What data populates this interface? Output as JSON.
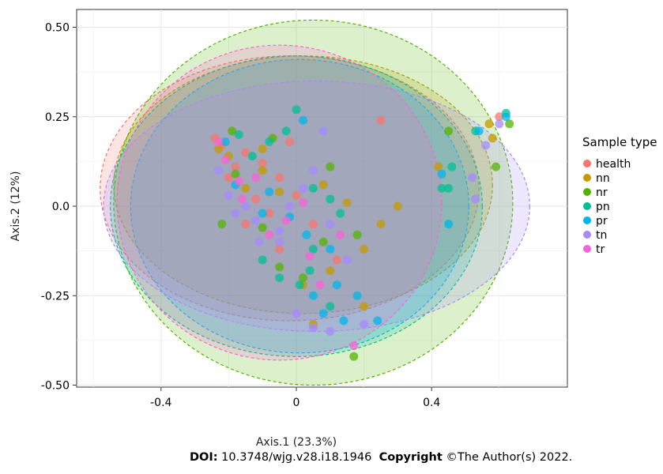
{
  "chart_data": {
    "type": "scatter",
    "xlabel": "Axis.1 (23.3%)",
    "ylabel": "Axis.2 (12%)",
    "xlim": [
      -0.65,
      0.8
    ],
    "ylim": [
      -0.52,
      0.56
    ],
    "x_ticks": [
      -0.4,
      0,
      0.4
    ],
    "x_tick_labels": [
      "-0.4",
      "0",
      "0.4"
    ],
    "y_ticks": [
      -0.5,
      -0.25,
      0.0,
      0.25,
      0.5
    ],
    "y_tick_labels": [
      "-0.50",
      "-0.25",
      "0.0",
      "0.25",
      "0.50"
    ],
    "grid": true,
    "legend": {
      "title": "Sample type",
      "placement": "right",
      "entries": [
        "health",
        "nn",
        "nr",
        "pn",
        "pr",
        "tn",
        "tr"
      ]
    },
    "colors": {
      "health": "#F8766D",
      "nn": "#C49A00",
      "nr": "#53B400",
      "pn": "#00C094",
      "pr": "#00B6EB",
      "tn": "#A58AFF",
      "tr": "#FB61D7"
    },
    "ellipses": [
      {
        "group": "health",
        "cx": -0.02,
        "cy": 0.05,
        "rx": 0.56,
        "ry": 0.37
      },
      {
        "group": "nn",
        "cx": 0.02,
        "cy": 0.06,
        "rx": 0.56,
        "ry": 0.36
      },
      {
        "group": "nr",
        "cx": 0.05,
        "cy": 0.01,
        "rx": 0.59,
        "ry": 0.51
      },
      {
        "group": "pn",
        "cx": 0.0,
        "cy": 0.0,
        "rx": 0.55,
        "ry": 0.42
      },
      {
        "group": "pr",
        "cx": 0.01,
        "cy": 0.0,
        "rx": 0.5,
        "ry": 0.41
      },
      {
        "group": "tn",
        "cx": 0.06,
        "cy": 0.0,
        "rx": 0.63,
        "ry": 0.35
      },
      {
        "group": "tr",
        "cx": -0.05,
        "cy": 0.01,
        "rx": 0.48,
        "ry": 0.44
      }
    ],
    "series": [
      {
        "name": "health",
        "points": [
          [
            -0.24,
            0.19
          ],
          [
            -0.22,
            0.17
          ],
          [
            -0.15,
            0.15
          ],
          [
            -0.1,
            0.12
          ],
          [
            -0.05,
            0.08
          ],
          [
            -0.2,
            0.08
          ],
          [
            -0.12,
            0.02
          ],
          [
            -0.08,
            -0.02
          ],
          [
            -0.15,
            -0.05
          ],
          [
            0.0,
            0.03
          ],
          [
            0.05,
            -0.05
          ],
          [
            -0.05,
            -0.12
          ],
          [
            0.12,
            -0.15
          ],
          [
            0.25,
            0.24
          ],
          [
            0.6,
            0.25
          ],
          [
            -0.18,
            0.11
          ],
          [
            -0.02,
            0.18
          ]
        ]
      },
      {
        "name": "nn",
        "points": [
          [
            -0.23,
            0.16
          ],
          [
            -0.2,
            0.14
          ],
          [
            -0.1,
            0.1
          ],
          [
            -0.15,
            0.05
          ],
          [
            -0.05,
            0.04
          ],
          [
            0.08,
            0.06
          ],
          [
            0.15,
            0.01
          ],
          [
            0.25,
            -0.05
          ],
          [
            0.3,
            0.0
          ],
          [
            0.2,
            -0.12
          ],
          [
            0.1,
            -0.18
          ],
          [
            0.02,
            -0.22
          ],
          [
            0.2,
            -0.28
          ],
          [
            0.05,
            -0.33
          ],
          [
            0.58,
            0.19
          ],
          [
            0.57,
            0.23
          ],
          [
            0.42,
            0.11
          ],
          [
            -0.1,
            0.16
          ]
        ]
      },
      {
        "name": "nr",
        "points": [
          [
            -0.19,
            0.21
          ],
          [
            -0.18,
            0.09
          ],
          [
            -0.22,
            -0.05
          ],
          [
            -0.1,
            -0.06
          ],
          [
            -0.05,
            -0.17
          ],
          [
            0.02,
            -0.2
          ],
          [
            0.08,
            -0.1
          ],
          [
            0.18,
            -0.08
          ],
          [
            0.45,
            0.21
          ],
          [
            0.63,
            0.23
          ],
          [
            0.59,
            0.11
          ],
          [
            0.17,
            -0.42
          ],
          [
            -0.07,
            0.19
          ],
          [
            0.1,
            0.11
          ]
        ]
      },
      {
        "name": "pn",
        "points": [
          [
            -0.17,
            0.2
          ],
          [
            -0.13,
            0.14
          ],
          [
            -0.08,
            0.18
          ],
          [
            -0.03,
            0.21
          ],
          [
            0.0,
            0.27
          ],
          [
            0.05,
            0.05
          ],
          [
            0.1,
            0.02
          ],
          [
            0.13,
            -0.02
          ],
          [
            0.05,
            -0.12
          ],
          [
            -0.05,
            -0.2
          ],
          [
            0.01,
            -0.22
          ],
          [
            0.04,
            -0.18
          ],
          [
            -0.1,
            -0.15
          ],
          [
            0.1,
            -0.28
          ],
          [
            0.53,
            0.21
          ],
          [
            0.43,
            0.05
          ],
          [
            0.46,
            0.11
          ],
          [
            0.62,
            0.26
          ],
          [
            0.45,
            0.05
          ]
        ]
      },
      {
        "name": "pr",
        "points": [
          [
            -0.21,
            0.18
          ],
          [
            -0.18,
            0.06
          ],
          [
            -0.08,
            0.04
          ],
          [
            -0.02,
            -0.03
          ],
          [
            0.03,
            -0.08
          ],
          [
            0.1,
            -0.12
          ],
          [
            0.12,
            -0.22
          ],
          [
            0.05,
            -0.25
          ],
          [
            0.08,
            -0.3
          ],
          [
            0.14,
            -0.32
          ],
          [
            0.24,
            -0.32
          ],
          [
            0.18,
            -0.25
          ],
          [
            0.45,
            -0.05
          ],
          [
            0.54,
            0.21
          ],
          [
            0.62,
            0.25
          ],
          [
            0.43,
            0.09
          ],
          [
            0.02,
            0.24
          ],
          [
            -0.1,
            -0.02
          ]
        ]
      },
      {
        "name": "tn",
        "points": [
          [
            -0.23,
            0.1
          ],
          [
            -0.2,
            0.03
          ],
          [
            -0.15,
            0.0
          ],
          [
            -0.12,
            -0.04
          ],
          [
            -0.05,
            -0.07
          ],
          [
            -0.02,
            0.0
          ],
          [
            0.02,
            0.05
          ],
          [
            0.05,
            0.1
          ],
          [
            0.1,
            -0.05
          ],
          [
            0.15,
            -0.15
          ],
          [
            -0.05,
            -0.1
          ],
          [
            0.0,
            -0.3
          ],
          [
            0.05,
            -0.34
          ],
          [
            0.1,
            -0.35
          ],
          [
            0.2,
            -0.33
          ],
          [
            0.56,
            0.17
          ],
          [
            0.52,
            0.08
          ],
          [
            0.53,
            0.02
          ],
          [
            0.6,
            0.23
          ],
          [
            -0.18,
            -0.02
          ],
          [
            -0.11,
            -0.1
          ],
          [
            0.08,
            0.21
          ]
        ]
      },
      {
        "name": "tr",
        "points": [
          [
            -0.23,
            0.18
          ],
          [
            -0.21,
            0.13
          ],
          [
            -0.17,
            0.07
          ],
          [
            -0.12,
            0.08
          ],
          [
            -0.08,
            -0.08
          ],
          [
            -0.03,
            -0.04
          ],
          [
            0.04,
            -0.14
          ],
          [
            0.07,
            -0.22
          ],
          [
            0.17,
            -0.39
          ],
          [
            -0.16,
            0.02
          ],
          [
            0.02,
            0.01
          ],
          [
            0.13,
            -0.08
          ]
        ]
      }
    ]
  },
  "axis_titles": {
    "x": "Axis.1 (23.3%)",
    "y": "Axis.2 (12%)"
  },
  "legend_title": "Sample type",
  "footer": {
    "doi_label": "DOI:",
    "doi_value": " 10.3748/wjg.v28.i18.1946",
    "copyright_label": "Copyright",
    "copyright_value": " ©The Author(s) 2022."
  }
}
